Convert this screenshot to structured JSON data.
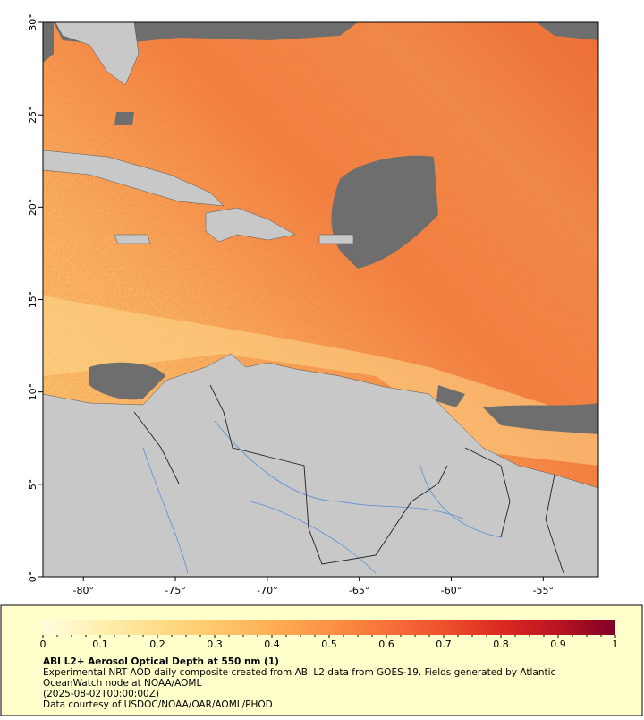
{
  "map": {
    "xlim": [
      -82.2,
      -52
    ],
    "ylim": [
      0,
      30
    ],
    "xticks": [
      {
        "value": -80,
        "label": "-80°"
      },
      {
        "value": -75,
        "label": "-75°"
      },
      {
        "value": -70,
        "label": "-70°"
      },
      {
        "value": -65,
        "label": "-65°"
      },
      {
        "value": -60,
        "label": "-60°"
      },
      {
        "value": -55,
        "label": "-55°"
      }
    ],
    "yticks": [
      {
        "value": 0,
        "label": "0°"
      },
      {
        "value": 5,
        "label": "5°"
      },
      {
        "value": 10,
        "label": "10°"
      },
      {
        "value": 15,
        "label": "15°"
      },
      {
        "value": 20,
        "label": "20°"
      },
      {
        "value": 25,
        "label": "25°"
      },
      {
        "value": 30,
        "label": "30°"
      }
    ]
  },
  "colorbar": {
    "range": [
      0,
      1
    ],
    "ticks": [
      0,
      0.1,
      0.2,
      0.3,
      0.4,
      0.5,
      0.6,
      0.7,
      0.8,
      0.9,
      1
    ],
    "colors": [
      "#fffde0",
      "#ffefb0",
      "#fedd8a",
      "#fec86a",
      "#fdae55",
      "#fc9244",
      "#f8713a",
      "#ef4f2c",
      "#dc2a22",
      "#bb1323",
      "#800026"
    ]
  },
  "caption": {
    "title": "ABI L2+ Aerosol Optical Depth at 550 nm (1)",
    "lines": [
      "Experimental NRT AOD daily composite created from ABI L2 data from GOES-19. Fields generated by Atlantic",
      "OceanWatch node at NOAA/AOML",
      "(2025-08-02T00:00:00Z)",
      "Data courtesy of USDOC/NOAA/OAR/AOML/PHOD"
    ]
  }
}
